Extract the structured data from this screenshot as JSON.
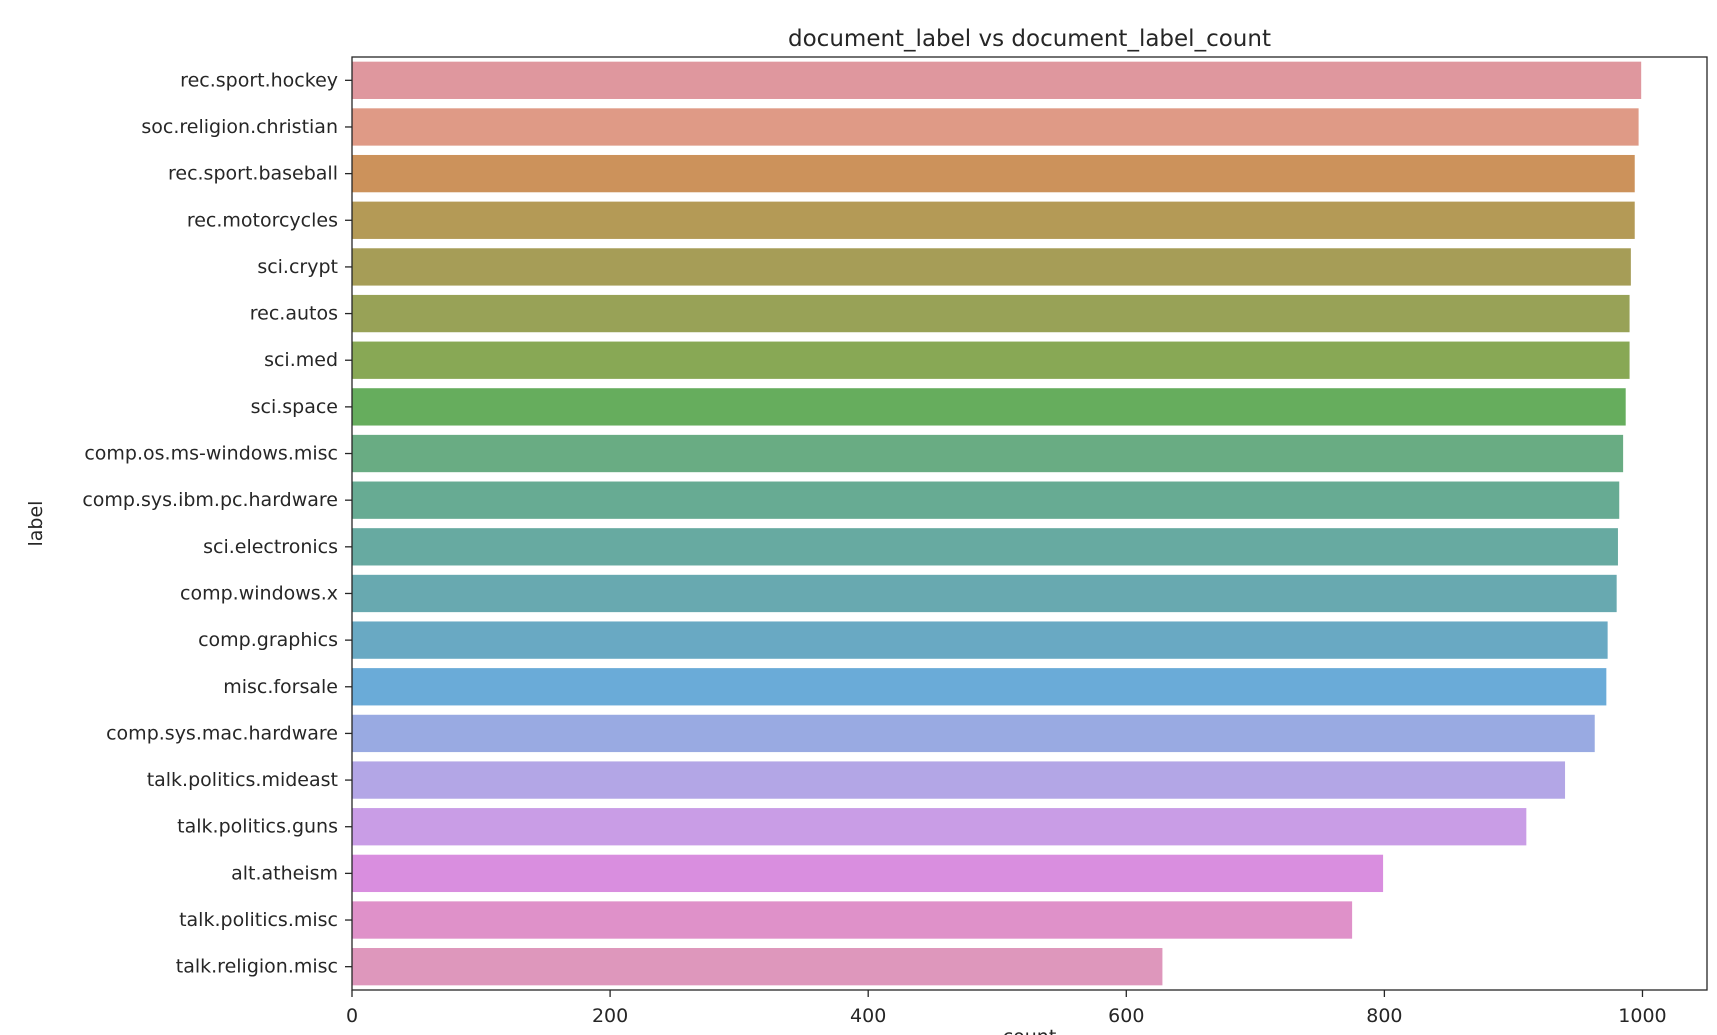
{
  "chart_data": {
    "type": "bar",
    "orientation": "horizontal",
    "title": "document_label vs document_label_count",
    "xlabel": "count",
    "ylabel": "label",
    "xlim": [
      0,
      1050
    ],
    "xticks": [
      0,
      200,
      400,
      600,
      800,
      1000
    ],
    "grid": false,
    "legend": "none",
    "categories": [
      "rec.sport.hockey",
      "soc.religion.christian",
      "rec.sport.baseball",
      "rec.motorcycles",
      "sci.crypt",
      "rec.autos",
      "sci.med",
      "sci.space",
      "comp.os.ms-windows.misc",
      "comp.sys.ibm.pc.hardware",
      "sci.electronics",
      "comp.windows.x",
      "comp.graphics",
      "misc.forsale",
      "comp.sys.mac.hardware",
      "talk.politics.mideast",
      "talk.politics.guns",
      "alt.atheism",
      "talk.politics.misc",
      "talk.religion.misc"
    ],
    "values": [
      999,
      997,
      994,
      994,
      991,
      990,
      990,
      987,
      985,
      982,
      981,
      980,
      973,
      972,
      963,
      940,
      910,
      799,
      775,
      628
    ],
    "colors": [
      "#df979e",
      "#df9a86",
      "#cc925b",
      "#b49a56",
      "#a69d57",
      "#98a257",
      "#88a855",
      "#66ad5d",
      "#69ac83",
      "#67ab93",
      "#67aaa1",
      "#68a9b0",
      "#69a9c3",
      "#6aabd8",
      "#99aae2",
      "#b3a6e6",
      "#c99de6",
      "#d98edf",
      "#df91c9",
      "#de97bc"
    ]
  }
}
